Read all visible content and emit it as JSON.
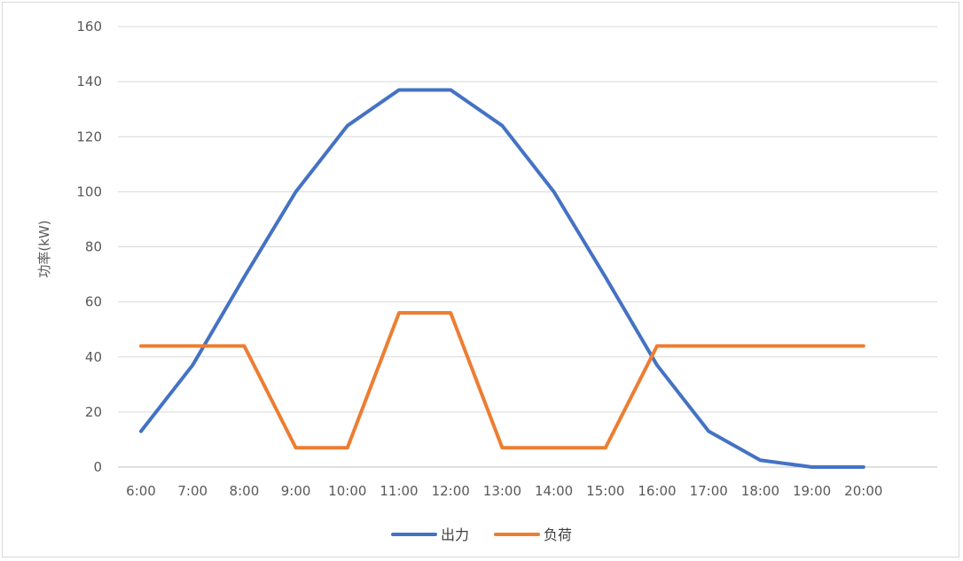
{
  "chart_data": {
    "type": "line",
    "ylabel": "功率(kW)",
    "xlabel": "",
    "ylim": [
      0,
      160
    ],
    "yticks": [
      0,
      20,
      40,
      60,
      80,
      100,
      120,
      140,
      160
    ],
    "grid": true,
    "legend_position": "bottom",
    "categories": [
      "6:00",
      "7:00",
      "8:00",
      "9:00",
      "10:00",
      "11:00",
      "12:00",
      "13:00",
      "14:00",
      "15:00",
      "16:00",
      "17:00",
      "18:00",
      "19:00",
      "20:00"
    ],
    "series": [
      {
        "name": "出力",
        "color": "#4472C4",
        "values": [
          13,
          37,
          69,
          100,
          124,
          137,
          137,
          124,
          100,
          69,
          37,
          13,
          2.5,
          0,
          0
        ]
      },
      {
        "name": "负荷",
        "color": "#ED7D31",
        "values": [
          44,
          44,
          44,
          7,
          7,
          56,
          56,
          7,
          7,
          7,
          44,
          44,
          44,
          44,
          44
        ]
      }
    ]
  }
}
